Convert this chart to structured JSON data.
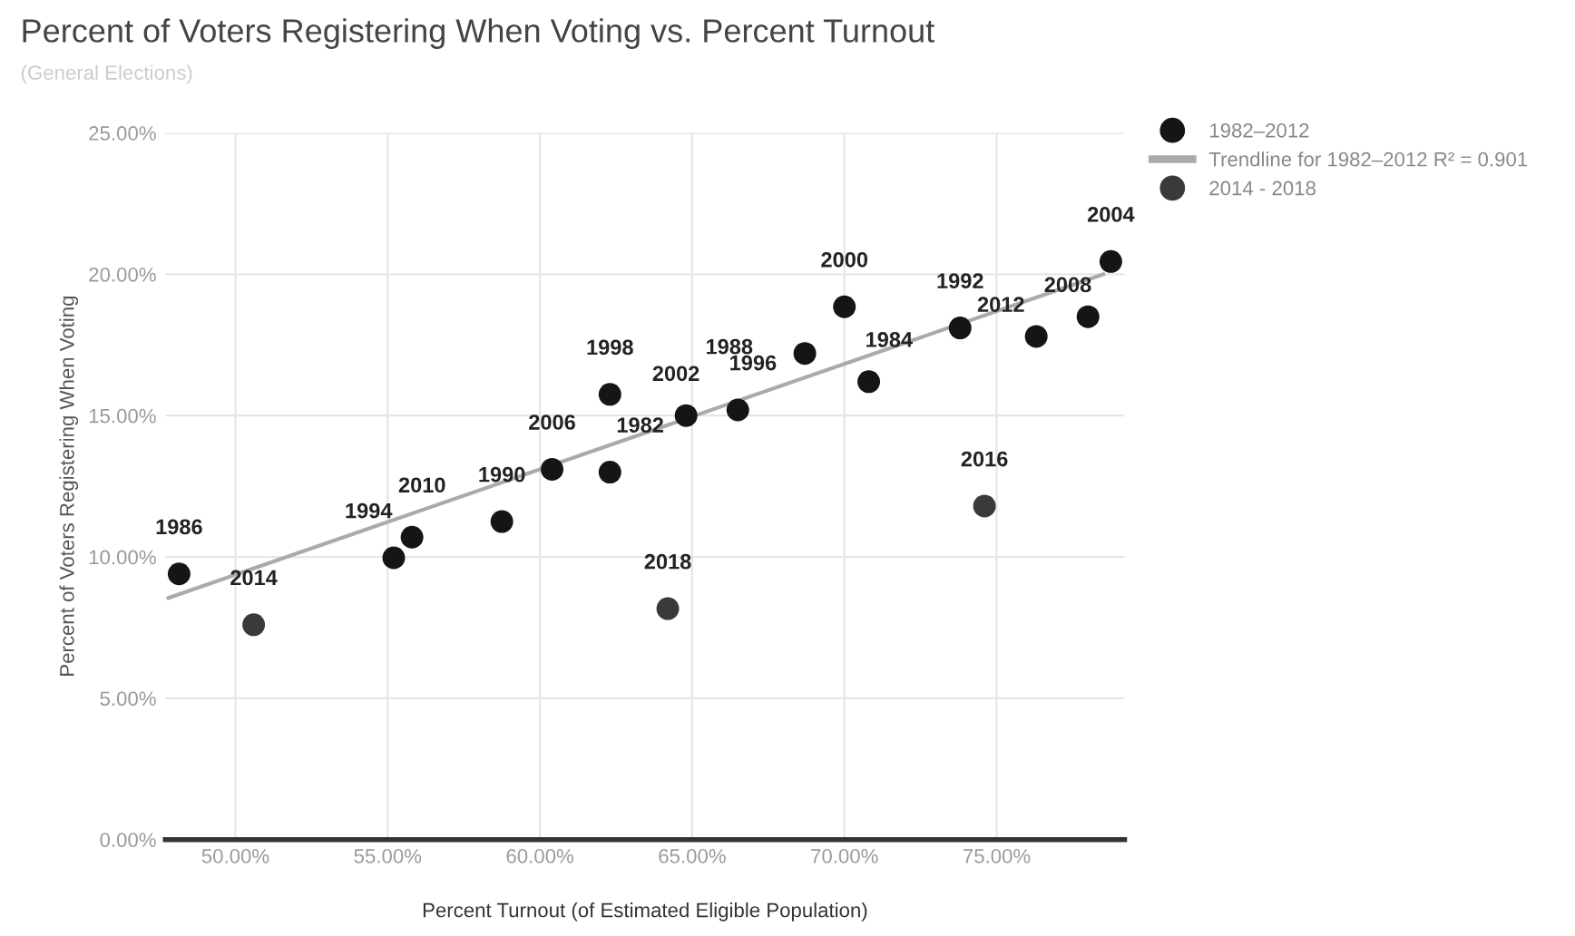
{
  "chart_data": {
    "type": "scatter",
    "title": "Percent of Voters Registering When Voting vs. Percent Turnout",
    "subtitle": "(General Elections)",
    "xlabel": "Percent Turnout (of Estimated Eligible Population)",
    "ylabel": "Percent of Voters Registering When Voting",
    "series": [
      {
        "name": "1982–2012",
        "color": "#151515",
        "x": [
          48.15,
          55.2,
          55.8,
          58.75,
          60.4,
          62.3,
          62.3,
          64.8,
          66.5,
          68.7,
          70.0,
          70.8,
          73.8,
          76.3,
          78.0,
          78.75
        ],
        "values": [
          9.4,
          9.97,
          10.7,
          11.25,
          13.1,
          13.0,
          15.75,
          15.0,
          15.2,
          17.2,
          18.85,
          16.2,
          18.1,
          17.8,
          18.5,
          20.45
        ]
      },
      {
        "name": "Trendline for 1982–2012 R² = 0.901",
        "type": "line",
        "marker": "none",
        "color": "#aaaaaa",
        "x": [
          47.8,
          78.5
        ],
        "values": [
          8.55,
          20.0
        ]
      },
      {
        "name": "2014 - 2018",
        "color": "#3a3a3a",
        "x": [
          50.6,
          74.6,
          64.2
        ],
        "values": [
          7.6,
          11.8,
          8.17
        ]
      }
    ],
    "annotations": [
      {
        "text": "1986",
        "x": 48.15,
        "y": 9.4
      },
      {
        "text": "2014",
        "x": 50.6,
        "y": 7.6
      },
      {
        "text": "1994",
        "x": 55.2,
        "y": 9.97
      },
      {
        "text": "2010",
        "x": 55.8,
        "y": 10.7
      },
      {
        "text": "1990",
        "x": 58.75,
        "y": 11.25
      },
      {
        "text": "2006",
        "x": 60.4,
        "y": 13.1
      },
      {
        "text": "1982",
        "x": 62.3,
        "y": 13.0
      },
      {
        "text": "1998",
        "x": 62.3,
        "y": 15.75
      },
      {
        "text": "2018",
        "x": 64.2,
        "y": 8.17
      },
      {
        "text": "2002",
        "x": 64.8,
        "y": 15.0
      },
      {
        "text": "1996",
        "x": 66.5,
        "y": 15.2
      },
      {
        "text": "1988",
        "x": 68.7,
        "y": 17.2
      },
      {
        "text": "2000",
        "x": 70.0,
        "y": 18.85
      },
      {
        "text": "1984",
        "x": 70.8,
        "y": 16.2
      },
      {
        "text": "1992",
        "x": 73.8,
        "y": 18.1
      },
      {
        "text": "2016",
        "x": 74.6,
        "y": 11.8
      },
      {
        "text": "2012",
        "x": 76.3,
        "y": 17.8
      },
      {
        "text": "2008",
        "x": 78.0,
        "y": 18.5
      },
      {
        "text": "2004",
        "x": 78.75,
        "y": 20.45
      }
    ],
    "xlim": [
      47.7,
      79.2
    ],
    "ylim": [
      0,
      25
    ],
    "xticks": [
      {
        "value": 50,
        "label": "50.00%"
      },
      {
        "value": 55,
        "label": "55.00%"
      },
      {
        "value": 60,
        "label": "60.00%"
      },
      {
        "value": 65,
        "label": "65.00%"
      },
      {
        "value": 70,
        "label": "70.00%"
      },
      {
        "value": 75,
        "label": "75.00%"
      }
    ],
    "yticks": [
      {
        "value": 0,
        "label": "0.00%"
      },
      {
        "value": 5,
        "label": "5.00%"
      },
      {
        "value": 10,
        "label": "10.00%"
      },
      {
        "value": 15,
        "label": "15.00%"
      },
      {
        "value": 20,
        "label": "20.00%"
      },
      {
        "value": 25,
        "label": "25.00%"
      }
    ],
    "grid": true,
    "legend": "top right",
    "marker": "circle"
  }
}
